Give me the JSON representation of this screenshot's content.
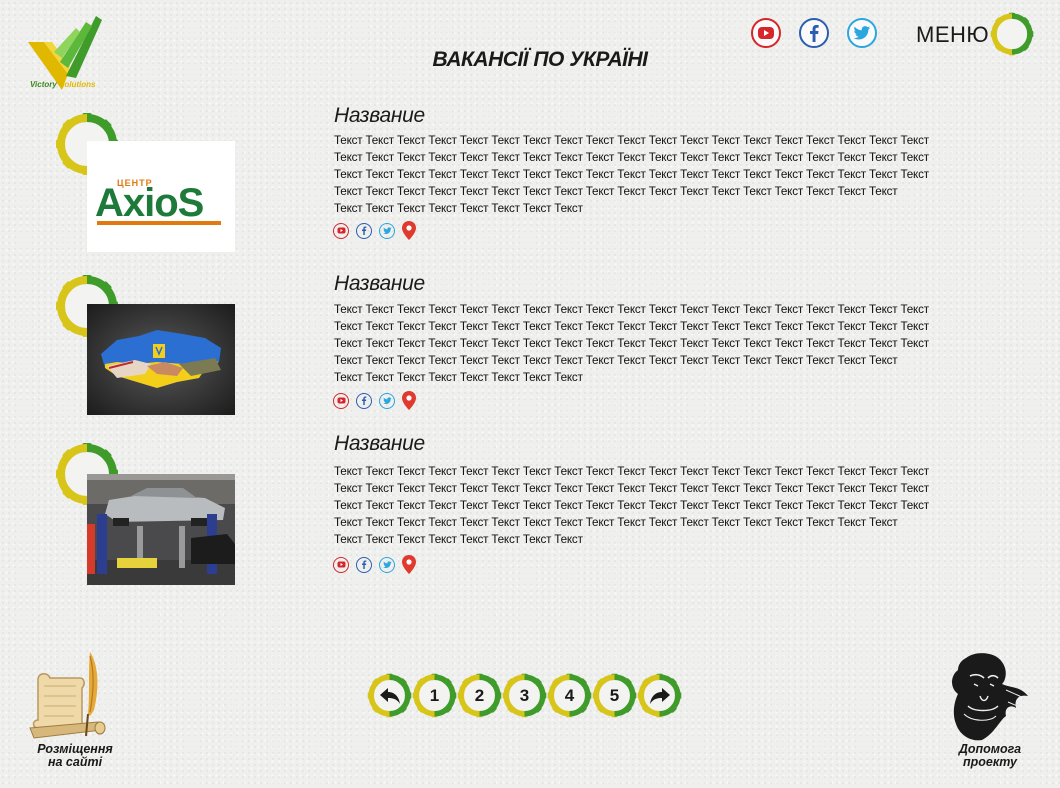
{
  "header": {
    "logo_text_a": "Victory",
    "logo_text_b": "Solutions",
    "page_title": "ВАКАНСІЇ ПО УКРАЇНІ",
    "menu_label": "МЕНЮ",
    "social": [
      {
        "name": "youtube",
        "icon": "youtube-icon",
        "color": "#d4262b"
      },
      {
        "name": "facebook",
        "icon": "facebook-icon",
        "color": "#2b5db0"
      },
      {
        "name": "twitter",
        "icon": "twitter-icon",
        "color": "#2ba6de"
      }
    ]
  },
  "items": [
    {
      "title": "Название",
      "image_text_top": "ЦЕНТР",
      "image_text_main": "AxioS",
      "lines": [
        "Текст Текст Текст Текст Текст Текст Текст Текст Текст Текст Текст Текст Текст Текст Текст Текст Текст Текст Текст",
        "Текст Текст Текст Текст Текст Текст Текст Текст Текст Текст Текст Текст Текст Текст Текст Текст Текст Текст Текст",
        "Текст Текст Текст Текст Текст Текст Текст Текст Текст Текст Текст Текст Текст Текст Текст Текст Текст Текст Текст",
        "Текст Текст Текст Текст Текст Текст Текст Текст Текст Текст Текст Текст Текст Текст Текст Текст Текст Текст",
        "Текст Текст Текст Текст Текст Текст Текст Текст"
      ]
    },
    {
      "title": "Название",
      "lines": [
        "Текст Текст Текст Текст Текст Текст Текст Текст Текст Текст Текст Текст Текст Текст Текст Текст Текст Текст Текст",
        "Текст Текст Текст Текст Текст Текст Текст Текст Текст Текст Текст Текст Текст Текст Текст Текст Текст Текст Текст",
        "Текст Текст Текст Текст Текст Текст Текст Текст Текст Текст Текст Текст Текст Текст Текст Текст Текст Текст Текст",
        "Текст Текст Текст Текст Текст Текст Текст Текст Текст Текст Текст Текст Текст Текст Текст Текст Текст Текст",
        "Текст Текст Текст Текст Текст Текст Текст Текст"
      ]
    },
    {
      "title": "Название",
      "lines": [
        "Текст Текст Текст Текст Текст Текст Текст Текст Текст Текст Текст Текст Текст Текст Текст Текст Текст Текст Текст",
        "Текст Текст Текст Текст Текст Текст Текст Текст Текст Текст Текст Текст Текст Текст Текст Текст Текст Текст Текст",
        "Текст Текст Текст Текст Текст Текст Текст Текст Текст Текст Текст Текст Текст Текст Текст Текст Текст Текст Текст",
        "Текст Текст Текст Текст Текст Текст Текст Текст Текст Текст Текст Текст Текст Текст Текст Текст Текст Текст",
        "Текст Текст Текст Текст Текст Текст Текст Текст"
      ]
    }
  ],
  "pagination": {
    "prev_icon": "arrow-back-icon",
    "pages": [
      "1",
      "2",
      "3",
      "4",
      "5"
    ],
    "next_icon": "arrow-forward-icon"
  },
  "footer": {
    "left_line1": "Розміщення",
    "left_line2": "на сайті",
    "right_line1": "Допомога",
    "right_line2": "проекту"
  },
  "colors": {
    "gear_green": "#3f9b2a",
    "gear_yellow": "#d8c51a",
    "youtube": "#d4262b",
    "facebook": "#2b5db0",
    "twitter": "#2ba6de",
    "pin": "#e03a2f"
  }
}
